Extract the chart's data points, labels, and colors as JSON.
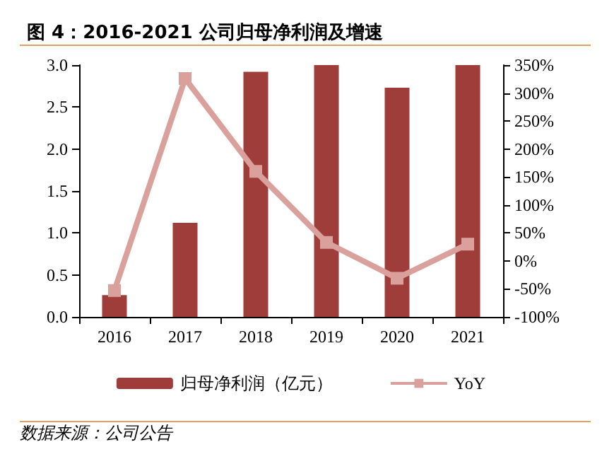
{
  "chart_data": {
    "type": "bar",
    "title": "图 4：2016-2021 公司归母净利润及增速",
    "categories": [
      "2016",
      "2017",
      "2018",
      "2019",
      "2020",
      "2021"
    ],
    "series": [
      {
        "name": "归母净利润（亿元）",
        "color": "#9e3d3a",
        "values": [
          0.26,
          1.12,
          2.92,
          3.0,
          2.73,
          3.0
        ]
      },
      {
        "name": "YoY",
        "type": "line",
        "axis": "y2",
        "color": "#d9a09c",
        "marker": "square",
        "values": [
          -53,
          326,
          160,
          33,
          -31,
          30
        ]
      }
    ],
    "ylim": [
      0,
      3
    ],
    "yticks": [
      {
        "value": 0,
        "label": "0.0"
      },
      0.5,
      {
        "value": 1,
        "label": "1.0"
      },
      1.5,
      {
        "value": 2,
        "label": "2.0"
      },
      2.5,
      {
        "value": 3,
        "label": "3.0"
      }
    ],
    "y2lim": [
      -100,
      350
    ],
    "y2ticks": [
      {
        "value": -100,
        "label": "-100%"
      },
      {
        "value": -50,
        "label": "-50%"
      },
      {
        "value": 0,
        "label": "0%"
      },
      {
        "value": 50,
        "label": "50%"
      },
      {
        "value": 100,
        "label": "100%"
      },
      {
        "value": 150,
        "label": "150%"
      },
      {
        "value": 200,
        "label": "200%"
      },
      {
        "value": 250,
        "label": "250%"
      },
      {
        "value": 300,
        "label": "300%"
      },
      {
        "value": 350,
        "label": "350%"
      }
    ],
    "grid": false,
    "legend": "bottom",
    "annotations": [
      "数据来源：公司公告"
    ]
  }
}
